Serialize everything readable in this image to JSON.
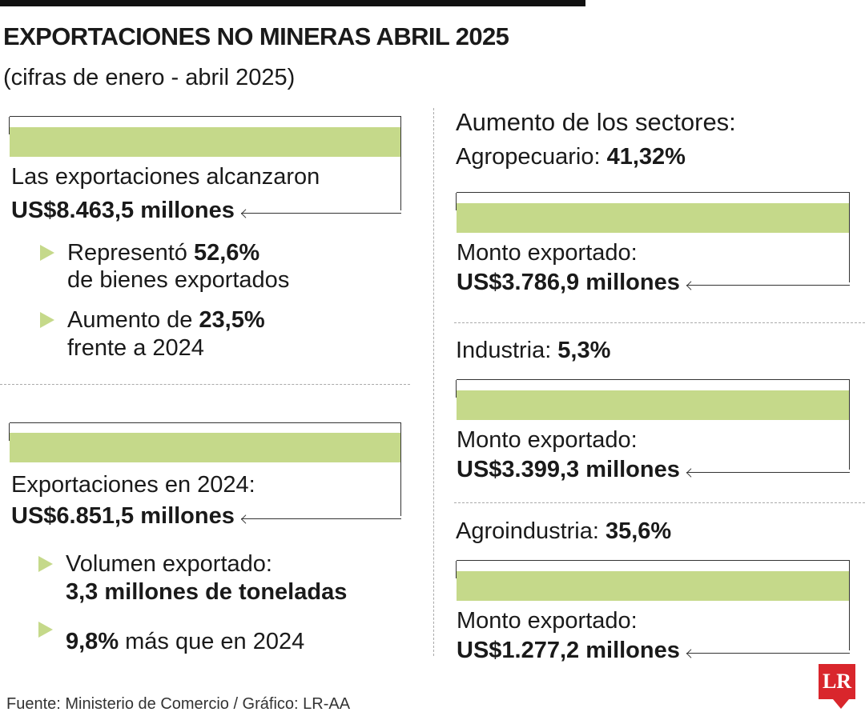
{
  "header": {
    "title": "EXPORTACIONES NO MINERAS ABRIL 2025",
    "subtitle": "(cifras de enero - abril 2025)"
  },
  "left": {
    "total": {
      "label": "Las exportaciones alcanzaron",
      "value": "US$8.463,5 millones"
    },
    "points": [
      {
        "text": "Representó",
        "bold": "52,6%",
        "rest": "de bienes exportados"
      },
      {
        "text": "Aumento de",
        "bold": "23,5%",
        "rest": "frente a 2024"
      }
    ],
    "previous": {
      "label": "Exportaciones en 2024:",
      "value": "US$6.851,5 millones"
    },
    "volume": {
      "text": "Volumen exportado:",
      "bold": "3,3 millones de toneladas"
    },
    "growth": {
      "bold": "9,8%",
      "rest": "más que en 2024"
    }
  },
  "right": {
    "heading": "Aumento de los sectores:",
    "sectors": [
      {
        "name": "Agropecuario:",
        "pct": "41,32%",
        "label": "Monto exportado:",
        "value": "US$3.786,9 millones"
      },
      {
        "name": "Industria:",
        "pct": "5,3%",
        "label": "Monto exportado:",
        "value": "US$3.399,3 millones"
      },
      {
        "name": "Agroindustria:",
        "pct": "35,6%",
        "label": "Monto exportado:",
        "value": "US$1.277,2 millones"
      }
    ]
  },
  "footer": {
    "source": "Fuente: Ministerio de Comercio / Gráfico: LR-AA",
    "logo": "LR"
  }
}
